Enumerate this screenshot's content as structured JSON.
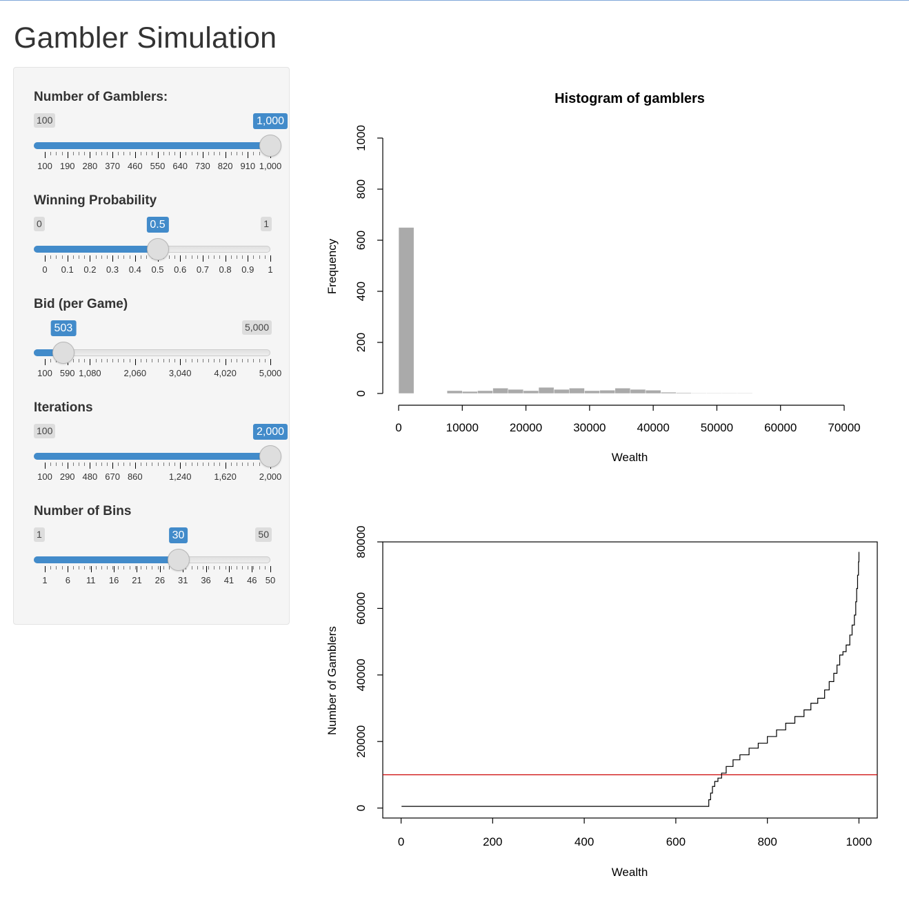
{
  "page": {
    "title": "Gambler Simulation"
  },
  "sliders": [
    {
      "label": "Number of Gamblers:",
      "min": 100,
      "max": 1000,
      "value": 1000,
      "min_label": "100",
      "max_label": "1,000",
      "value_label": "1,000",
      "show_min_badge": true,
      "show_max_badge": false,
      "tick_labels": [
        "100",
        "190",
        "280",
        "370",
        "460",
        "550",
        "640",
        "730",
        "820",
        "910",
        "1,000"
      ],
      "tick_values": [
        100,
        190,
        280,
        370,
        460,
        550,
        640,
        730,
        820,
        910,
        1000
      ]
    },
    {
      "label": "Winning Probability",
      "min": 0,
      "max": 1,
      "value": 0.5,
      "min_label": "0",
      "max_label": "1",
      "value_label": "0.5",
      "show_min_badge": true,
      "show_max_badge": true,
      "tick_labels": [
        "0",
        "0.1",
        "0.2",
        "0.3",
        "0.4",
        "0.5",
        "0.6",
        "0.7",
        "0.8",
        "0.9",
        "1"
      ],
      "tick_values": [
        0,
        0.1,
        0.2,
        0.3,
        0.4,
        0.5,
        0.6,
        0.7,
        0.8,
        0.9,
        1
      ]
    },
    {
      "label": "Bid (per Game)",
      "min": 100,
      "max": 5000,
      "value": 503,
      "min_label": "100",
      "max_label": "5,000",
      "value_label": "503",
      "show_min_badge": false,
      "show_max_badge": true,
      "tick_labels": [
        "100",
        "590",
        "1,080",
        "2,060",
        "3,040",
        "4,020",
        "5,000"
      ],
      "tick_values": [
        100,
        590,
        1080,
        2060,
        3040,
        4020,
        5000
      ]
    },
    {
      "label": "Iterations",
      "min": 100,
      "max": 2000,
      "value": 2000,
      "min_label": "100",
      "max_label": "2,000",
      "value_label": "2,000",
      "show_min_badge": true,
      "show_max_badge": false,
      "tick_labels": [
        "100",
        "290",
        "480",
        "670",
        "860",
        "1,240",
        "1,620",
        "2,000"
      ],
      "tick_values": [
        100,
        290,
        480,
        670,
        860,
        1240,
        1620,
        2000
      ]
    },
    {
      "label": "Number of Bins",
      "min": 1,
      "max": 50,
      "value": 30,
      "min_label": "1",
      "max_label": "50",
      "value_label": "30",
      "show_min_badge": true,
      "show_max_badge": true,
      "tick_labels": [
        "1",
        "6",
        "11",
        "16",
        "21",
        "26",
        "31",
        "36",
        "41",
        "46",
        "50"
      ],
      "tick_values": [
        1,
        6,
        11,
        16,
        21,
        26,
        31,
        36,
        41,
        46,
        50
      ]
    }
  ],
  "chart_data": [
    {
      "type": "bar",
      "title": "Histogram of gamblers",
      "xlabel": "Wealth",
      "ylabel": "Frequency",
      "xlim": [
        0,
        70000
      ],
      "ylim": [
        0,
        1000
      ],
      "x_ticks": [
        0,
        10000,
        20000,
        30000,
        40000,
        50000,
        60000,
        70000
      ],
      "y_ticks": [
        0,
        200,
        400,
        600,
        800,
        1000
      ],
      "bar_color": "#aaaaaa",
      "bin_width": 2400,
      "bins": [
        {
          "start": 0,
          "value": 650
        },
        {
          "start": 7600,
          "value": 11
        },
        {
          "start": 10000,
          "value": 8
        },
        {
          "start": 12400,
          "value": 11
        },
        {
          "start": 14800,
          "value": 21
        },
        {
          "start": 17200,
          "value": 16
        },
        {
          "start": 19600,
          "value": 11
        },
        {
          "start": 22000,
          "value": 24
        },
        {
          "start": 24400,
          "value": 16
        },
        {
          "start": 26800,
          "value": 21
        },
        {
          "start": 29200,
          "value": 11
        },
        {
          "start": 31600,
          "value": 13
        },
        {
          "start": 34000,
          "value": 21
        },
        {
          "start": 36400,
          "value": 16
        },
        {
          "start": 38800,
          "value": 13
        },
        {
          "start": 41200,
          "value": 5
        },
        {
          "start": 43600,
          "value": 3
        },
        {
          "start": 46000,
          "value": 2
        },
        {
          "start": 48400,
          "value": 2
        },
        {
          "start": 50800,
          "value": 2
        },
        {
          "start": 53200,
          "value": 2
        }
      ]
    },
    {
      "type": "line",
      "title": "",
      "xlabel": "Wealth",
      "ylabel": "Number of Gamblers",
      "xlim": [
        -40,
        1040
      ],
      "ylim": [
        -3000,
        80000
      ],
      "x_ticks": [
        0,
        200,
        400,
        600,
        800,
        1000
      ],
      "y_ticks": [
        0,
        20000,
        40000,
        60000,
        80000
      ],
      "line_color": "#000000",
      "ref_line": {
        "y": 10000,
        "color": "#cc0000"
      },
      "points": [
        [
          1,
          500
        ],
        [
          670,
          500
        ],
        [
          672,
          2500
        ],
        [
          676,
          4500
        ],
        [
          680,
          6500
        ],
        [
          685,
          8000
        ],
        [
          692,
          9000
        ],
        [
          700,
          10500
        ],
        [
          710,
          12500
        ],
        [
          725,
          14500
        ],
        [
          740,
          16000
        ],
        [
          760,
          18000
        ],
        [
          780,
          19500
        ],
        [
          800,
          21500
        ],
        [
          820,
          23500
        ],
        [
          840,
          25500
        ],
        [
          860,
          27500
        ],
        [
          880,
          29500
        ],
        [
          895,
          31500
        ],
        [
          910,
          33000
        ],
        [
          925,
          35500
        ],
        [
          935,
          38000
        ],
        [
          945,
          40500
        ],
        [
          952,
          43000
        ],
        [
          958,
          46000
        ],
        [
          965,
          47000
        ],
        [
          972,
          49000
        ],
        [
          980,
          52000
        ],
        [
          985,
          55000
        ],
        [
          990,
          58000
        ],
        [
          993,
          62000
        ],
        [
          995,
          66000
        ],
        [
          997,
          70000
        ],
        [
          999,
          74000
        ],
        [
          1000,
          77000
        ]
      ]
    }
  ]
}
